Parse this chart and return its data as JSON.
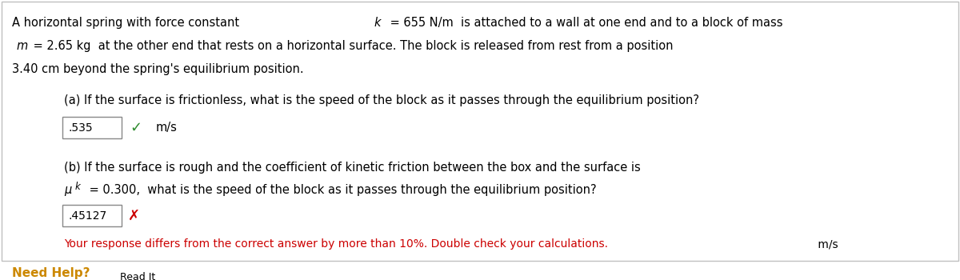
{
  "bg_color": "#ffffff",
  "border_color": "#c0c0c0",
  "text_color": "#000000",
  "red_color": "#cc0000",
  "green_color": "#2e8b2e",
  "orange_color": "#cc8800",
  "button_bg": "#c8a040",
  "button_border": "#a07820",
  "input_border": "#888888",
  "intro_line1": "A horizontal spring with force constant  k  = 655 N/m  is attached to a wall at one end and to a block of mass",
  "intro_line2": " m  = 2.65 kg  at the other end that rests on a horizontal surface. The block is released from rest from a position",
  "intro_line3": "3.40 cm beyond the spring's equilibrium position.",
  "part_a_line1": "(a) If the surface is frictionless, what is the speed of the block as it passes through the equilibrium position?",
  "part_a_answer": ".535",
  "part_a_unit": "m/s",
  "part_b_line1": "(b) If the surface is rough and the coefficient of kinetic friction between the box and the surface is",
  "part_b_line2": "μk = 0.300,  what is the speed of the block as it passes through the equilibrium position?",
  "part_b_answer": ".45127",
  "part_b_error_msg": "Your response differs from the correct answer by more than 10%. Double check your calculations.",
  "part_b_unit": "m/s",
  "need_help_text": "Need Help?",
  "read_it_text": "Read It"
}
